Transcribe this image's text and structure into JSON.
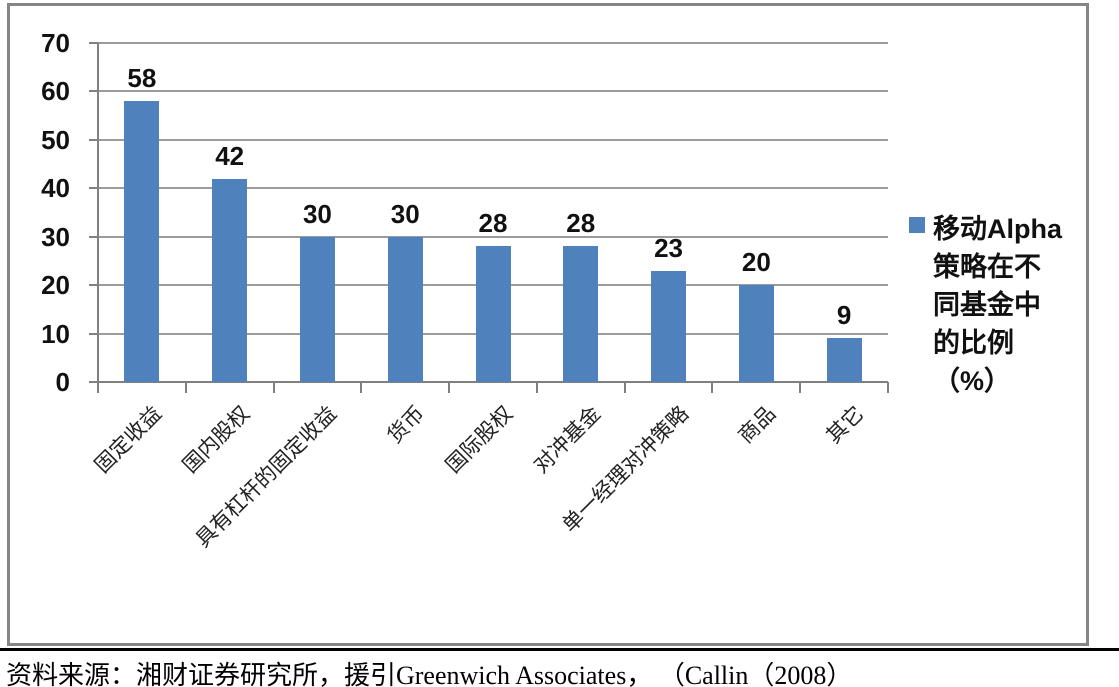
{
  "chart_data": {
    "type": "bar",
    "categories": [
      "固定收益",
      "国内股权",
      "具有杠杆的固定收益",
      "货币",
      "国际股权",
      "对冲基金",
      "单一经理对冲策略",
      "商品",
      "其它"
    ],
    "values": [
      58,
      42,
      30,
      30,
      28,
      28,
      23,
      20,
      9
    ],
    "data_labels_shown": true,
    "title": "",
    "xlabel": "",
    "ylabel": "",
    "ylim": [
      0,
      70
    ],
    "ytick_step": 10,
    "ytick_labels": [
      "0",
      "10",
      "20",
      "30",
      "40",
      "50",
      "60",
      "70"
    ],
    "grid": true,
    "legend_position": "right",
    "series_name": "移动Alpha策略在不同基金中的比例（%）",
    "legend_lines": [
      "移动Alpha",
      "策略在不",
      "同基金中",
      "的比例",
      "（%）"
    ],
    "bar_color": "#4F81BD",
    "gridline_color": "#9c9c9c",
    "axis_color": "#808080"
  },
  "footer": {
    "source_text": "资料来源：湘财证券研究所，援引Greenwich Associates， （Callin（2008）"
  }
}
